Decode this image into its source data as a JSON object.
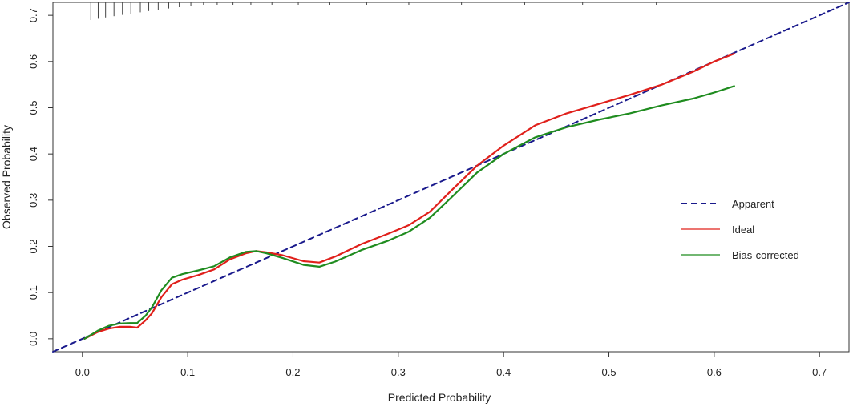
{
  "chart_data": {
    "type": "line",
    "xlabel": "Predicted Probability",
    "ylabel": "Observed Probability",
    "xlim": [
      -0.028,
      0.728
    ],
    "ylim": [
      -0.028,
      0.728
    ],
    "x_ticks": [
      0.0,
      0.1,
      0.2,
      0.3,
      0.4,
      0.5,
      0.6,
      0.7
    ],
    "x_tick_labels": [
      "0.0",
      "0.1",
      "0.2",
      "0.3",
      "0.4",
      "0.5",
      "0.6",
      "0.7"
    ],
    "y_ticks": [
      0.0,
      0.1,
      0.2,
      0.3,
      0.4,
      0.5,
      0.6,
      0.7
    ],
    "y_tick_labels": [
      "0.0",
      "0.1",
      "0.2",
      "0.3",
      "0.4",
      "0.5",
      "0.6",
      "0.7"
    ],
    "grid": false,
    "legend_position": "right",
    "rug_x": [
      0.008,
      0.015,
      0.022,
      0.03,
      0.038,
      0.046,
      0.055,
      0.063,
      0.072,
      0.082,
      0.092,
      0.103,
      0.115,
      0.128,
      0.143,
      0.16,
      0.18,
      0.205,
      0.235,
      0.27,
      0.31,
      0.36,
      0.42,
      0.475,
      0.545
    ],
    "series": [
      {
        "name": "Apparent",
        "color": "#1a1a8c",
        "dash": true,
        "x": [
          -0.028,
          0.728
        ],
        "y": [
          -0.028,
          0.728
        ]
      },
      {
        "name": "Ideal",
        "color": "#e0201b",
        "dash": false,
        "x": [
          0.002,
          0.015,
          0.025,
          0.035,
          0.045,
          0.052,
          0.06,
          0.066,
          0.075,
          0.085,
          0.095,
          0.11,
          0.125,
          0.14,
          0.155,
          0.165,
          0.175,
          0.19,
          0.21,
          0.225,
          0.24,
          0.265,
          0.29,
          0.31,
          0.33,
          0.35,
          0.375,
          0.4,
          0.43,
          0.46,
          0.49,
          0.52,
          0.55,
          0.58,
          0.6,
          0.619
        ],
        "y": [
          0.0,
          0.015,
          0.022,
          0.026,
          0.026,
          0.024,
          0.04,
          0.055,
          0.09,
          0.118,
          0.128,
          0.138,
          0.15,
          0.172,
          0.185,
          0.19,
          0.187,
          0.181,
          0.168,
          0.165,
          0.178,
          0.205,
          0.227,
          0.246,
          0.275,
          0.32,
          0.375,
          0.418,
          0.462,
          0.488,
          0.508,
          0.528,
          0.55,
          0.578,
          0.6,
          0.617
        ]
      },
      {
        "name": "Bias-corrected",
        "color": "#1f8c1f",
        "dash": false,
        "x": [
          0.002,
          0.015,
          0.025,
          0.035,
          0.045,
          0.052,
          0.06,
          0.066,
          0.075,
          0.085,
          0.095,
          0.11,
          0.125,
          0.14,
          0.155,
          0.165,
          0.175,
          0.19,
          0.21,
          0.225,
          0.24,
          0.265,
          0.29,
          0.31,
          0.33,
          0.35,
          0.375,
          0.4,
          0.43,
          0.46,
          0.49,
          0.52,
          0.55,
          0.58,
          0.6,
          0.619
        ],
        "y": [
          0.0,
          0.018,
          0.028,
          0.033,
          0.034,
          0.034,
          0.05,
          0.068,
          0.105,
          0.132,
          0.14,
          0.148,
          0.157,
          0.176,
          0.188,
          0.19,
          0.185,
          0.175,
          0.16,
          0.156,
          0.167,
          0.192,
          0.212,
          0.232,
          0.262,
          0.305,
          0.36,
          0.4,
          0.436,
          0.458,
          0.474,
          0.488,
          0.505,
          0.52,
          0.533,
          0.547
        ]
      }
    ]
  }
}
